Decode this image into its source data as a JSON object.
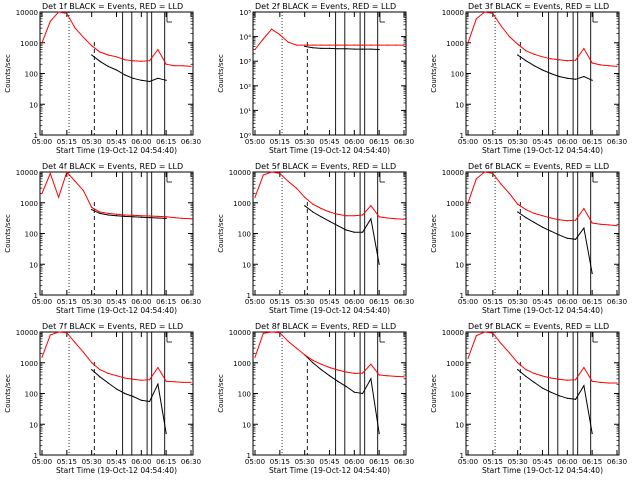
{
  "figure": {
    "x_tick_labels": [
      "05:00",
      "05:15",
      "05:30",
      "05:45",
      "06:00",
      "06:15",
      "06:30"
    ],
    "y_axis_label": "Counts/sec",
    "x_axis_label": "Start Time (19-Oct-12 04:54:40)",
    "legend_text": "BLACK = Events, RED = LLD",
    "vline_times": [
      0.03,
      0.055,
      0.085,
      0.095,
      0.155
    ],
    "colors": {
      "events": "#000000",
      "lld": "#ff0000",
      "axis": "#000000"
    }
  },
  "chart_data": [
    {
      "type": "line",
      "title": "Det 1f",
      "yscale": "log",
      "ylim": [
        1,
        10000
      ],
      "ytick_labels": [
        "1",
        "10",
        "100",
        "1000",
        "10000"
      ],
      "x": [
        "05:00",
        "05:05",
        "05:10",
        "05:15",
        "05:20",
        "05:25",
        "05:30",
        "05:35",
        "05:40",
        "05:45",
        "05:50",
        "05:55",
        "06:00",
        "06:05",
        "06:10",
        "06:15",
        "06:20",
        "06:25",
        "06:30"
      ],
      "series": [
        {
          "name": "Events",
          "values": [
            null,
            null,
            null,
            null,
            null,
            null,
            400,
            250,
            170,
            130,
            90,
            70,
            60,
            55,
            70,
            60,
            null,
            null,
            null
          ]
        },
        {
          "name": "LLD",
          "values": [
            1000,
            5000,
            10000,
            9000,
            3000,
            1500,
            800,
            500,
            400,
            350,
            280,
            260,
            250,
            260,
            600,
            200,
            180,
            180,
            170
          ]
        }
      ]
    },
    {
      "type": "line",
      "title": "Det 2f",
      "yscale": "log",
      "ylim": [
        1,
        100000
      ],
      "ytick_labels": [
        "10⁰",
        "10¹",
        "10²",
        "10³",
        "10⁴",
        "10⁵"
      ],
      "x": [
        "05:00",
        "05:05",
        "05:10",
        "05:15",
        "05:20",
        "05:25",
        "05:30",
        "05:35",
        "05:40",
        "05:45",
        "05:50",
        "05:55",
        "06:00",
        "06:05",
        "06:10",
        "06:15",
        "06:20",
        "06:25",
        "06:30"
      ],
      "series": [
        {
          "name": "Events",
          "values": [
            null,
            null,
            null,
            null,
            null,
            null,
            4000,
            3500,
            3300,
            3300,
            3200,
            3200,
            3100,
            3100,
            3100,
            3000,
            null,
            null,
            null
          ]
        },
        {
          "name": "LLD",
          "values": [
            3000,
            8000,
            20000,
            12000,
            6000,
            4500,
            4500,
            4500,
            4500,
            4500,
            4500,
            4500,
            4500,
            4500,
            4500,
            4500,
            4500,
            4500,
            4500
          ]
        }
      ]
    },
    {
      "type": "line",
      "title": "Det 3f",
      "yscale": "log",
      "ylim": [
        1,
        10000
      ],
      "ytick_labels": [
        "1",
        "10",
        "100",
        "1000",
        "10000"
      ],
      "x": [
        "05:00",
        "05:05",
        "05:10",
        "05:15",
        "05:20",
        "05:25",
        "05:30",
        "05:35",
        "05:40",
        "05:45",
        "05:50",
        "05:55",
        "06:00",
        "06:05",
        "06:10",
        "06:15",
        "06:20",
        "06:25",
        "06:30"
      ],
      "series": [
        {
          "name": "Events",
          "values": [
            null,
            null,
            null,
            null,
            null,
            null,
            400,
            260,
            180,
            130,
            100,
            80,
            70,
            65,
            80,
            60,
            null,
            null,
            null
          ]
        },
        {
          "name": "LLD",
          "values": [
            1000,
            6000,
            10000,
            9000,
            3500,
            1600,
            900,
            550,
            420,
            350,
            300,
            280,
            260,
            270,
            650,
            220,
            190,
            180,
            170
          ]
        }
      ]
    },
    {
      "type": "line",
      "title": "Det 4f",
      "yscale": "log",
      "ylim": [
        1,
        10000
      ],
      "ytick_labels": [
        "1",
        "10",
        "100",
        "1000",
        "10000"
      ],
      "x": [
        "05:00",
        "05:05",
        "05:10",
        "05:15",
        "05:20",
        "05:25",
        "05:30",
        "05:35",
        "05:40",
        "05:45",
        "05:50",
        "05:55",
        "06:00",
        "06:05",
        "06:10",
        "06:15",
        "06:20",
        "06:25",
        "06:30"
      ],
      "series": [
        {
          "name": "Events",
          "values": [
            null,
            null,
            null,
            null,
            null,
            null,
            600,
            450,
            400,
            380,
            360,
            350,
            340,
            330,
            320,
            310,
            null,
            null,
            null
          ]
        },
        {
          "name": "LLD",
          "values": [
            2000,
            9000,
            1500,
            10000,
            5000,
            2500,
            700,
            500,
            450,
            420,
            400,
            390,
            380,
            370,
            360,
            350,
            330,
            310,
            300
          ]
        }
      ]
    },
    {
      "type": "line",
      "title": "Det 5f",
      "yscale": "log",
      "ylim": [
        1,
        10000
      ],
      "ytick_labels": [
        "1",
        "10",
        "100",
        "1000",
        "10000"
      ],
      "x": [
        "05:00",
        "05:05",
        "05:10",
        "05:15",
        "05:20",
        "05:25",
        "05:30",
        "05:35",
        "05:40",
        "05:45",
        "05:50",
        "05:55",
        "06:00",
        "06:05",
        "06:10",
        "06:15",
        "06:20",
        "06:25",
        "06:30"
      ],
      "series": [
        {
          "name": "Events",
          "values": [
            null,
            null,
            null,
            null,
            null,
            null,
            800,
            500,
            350,
            250,
            180,
            130,
            110,
            110,
            300,
            10,
            null,
            null,
            null
          ]
        },
        {
          "name": "LLD",
          "values": [
            1500,
            8000,
            10000,
            9000,
            5000,
            3000,
            1500,
            900,
            650,
            500,
            420,
            380,
            380,
            400,
            800,
            350,
            320,
            300,
            290
          ]
        }
      ]
    },
    {
      "type": "line",
      "title": "Det 6f",
      "yscale": "log",
      "ylim": [
        1,
        10000
      ],
      "ytick_labels": [
        "1",
        "10",
        "100",
        "1000",
        "10000"
      ],
      "x": [
        "05:00",
        "05:05",
        "05:10",
        "05:15",
        "05:20",
        "05:25",
        "05:30",
        "05:35",
        "05:40",
        "05:45",
        "05:50",
        "05:55",
        "06:00",
        "06:05",
        "06:10",
        "06:15",
        "06:20",
        "06:25",
        "06:30"
      ],
      "series": [
        {
          "name": "Events",
          "values": [
            null,
            null,
            null,
            null,
            null,
            null,
            500,
            330,
            230,
            160,
            120,
            90,
            70,
            65,
            150,
            5,
            null,
            null,
            null
          ]
        },
        {
          "name": "LLD",
          "values": [
            1000,
            6000,
            10000,
            9000,
            4000,
            2000,
            900,
            600,
            450,
            380,
            320,
            280,
            260,
            270,
            650,
            220,
            200,
            190,
            180
          ]
        }
      ]
    },
    {
      "type": "line",
      "title": "Det 7f",
      "yscale": "log",
      "ylim": [
        1,
        10000
      ],
      "ytick_labels": [
        "1",
        "10",
        "100",
        "1000",
        "10000"
      ],
      "x": [
        "05:00",
        "05:05",
        "05:10",
        "05:15",
        "05:20",
        "05:25",
        "05:30",
        "05:35",
        "05:40",
        "05:45",
        "05:50",
        "05:55",
        "06:00",
        "06:05",
        "06:10",
        "06:15",
        "06:20",
        "06:25",
        "06:30"
      ],
      "series": [
        {
          "name": "Events",
          "values": [
            null,
            null,
            null,
            null,
            null,
            null,
            600,
            350,
            220,
            140,
            100,
            80,
            60,
            55,
            200,
            5,
            null,
            null,
            null
          ]
        },
        {
          "name": "LLD",
          "values": [
            1500,
            8000,
            10000,
            9500,
            4500,
            2200,
            1000,
            600,
            450,
            380,
            320,
            290,
            270,
            280,
            700,
            250,
            240,
            230,
            230
          ]
        }
      ]
    },
    {
      "type": "line",
      "title": "Det 8f",
      "yscale": "log",
      "ylim": [
        1,
        10000
      ],
      "ytick_labels": [
        "1",
        "10",
        "100",
        "1000",
        "10000"
      ],
      "x": [
        "05:00",
        "05:05",
        "05:10",
        "05:15",
        "05:20",
        "05:25",
        "05:30",
        "05:35",
        "05:40",
        "05:45",
        "05:50",
        "05:55",
        "06:00",
        "06:05",
        "06:10",
        "06:15",
        "06:20",
        "06:25",
        "06:30"
      ],
      "series": [
        {
          "name": "Events",
          "values": [
            null,
            null,
            null,
            null,
            null,
            null,
            1800,
            1000,
            600,
            380,
            250,
            170,
            110,
            100,
            300,
            5,
            null,
            null,
            null
          ]
        },
        {
          "name": "LLD",
          "values": [
            1500,
            9000,
            10000,
            9500,
            5000,
            3000,
            1800,
            1200,
            900,
            700,
            580,
            500,
            450,
            460,
            900,
            400,
            380,
            360,
            350
          ]
        }
      ]
    },
    {
      "type": "line",
      "title": "Det 9f",
      "yscale": "log",
      "ylim": [
        1,
        10000
      ],
      "ytick_labels": [
        "1",
        "10",
        "100",
        "1000",
        "10000"
      ],
      "x": [
        "05:00",
        "05:05",
        "05:10",
        "05:15",
        "05:20",
        "05:25",
        "05:30",
        "05:35",
        "05:40",
        "05:45",
        "05:50",
        "05:55",
        "06:00",
        "06:05",
        "06:10",
        "06:15",
        "06:20",
        "06:25",
        "06:30"
      ],
      "series": [
        {
          "name": "Events",
          "values": [
            null,
            null,
            null,
            null,
            null,
            null,
            600,
            360,
            230,
            150,
            110,
            85,
            70,
            65,
            180,
            5,
            null,
            null,
            null
          ]
        },
        {
          "name": "LLD",
          "values": [
            1400,
            7500,
            10000,
            9200,
            4200,
            2100,
            1000,
            600,
            450,
            370,
            320,
            290,
            270,
            280,
            700,
            250,
            230,
            220,
            220
          ]
        }
      ]
    }
  ]
}
